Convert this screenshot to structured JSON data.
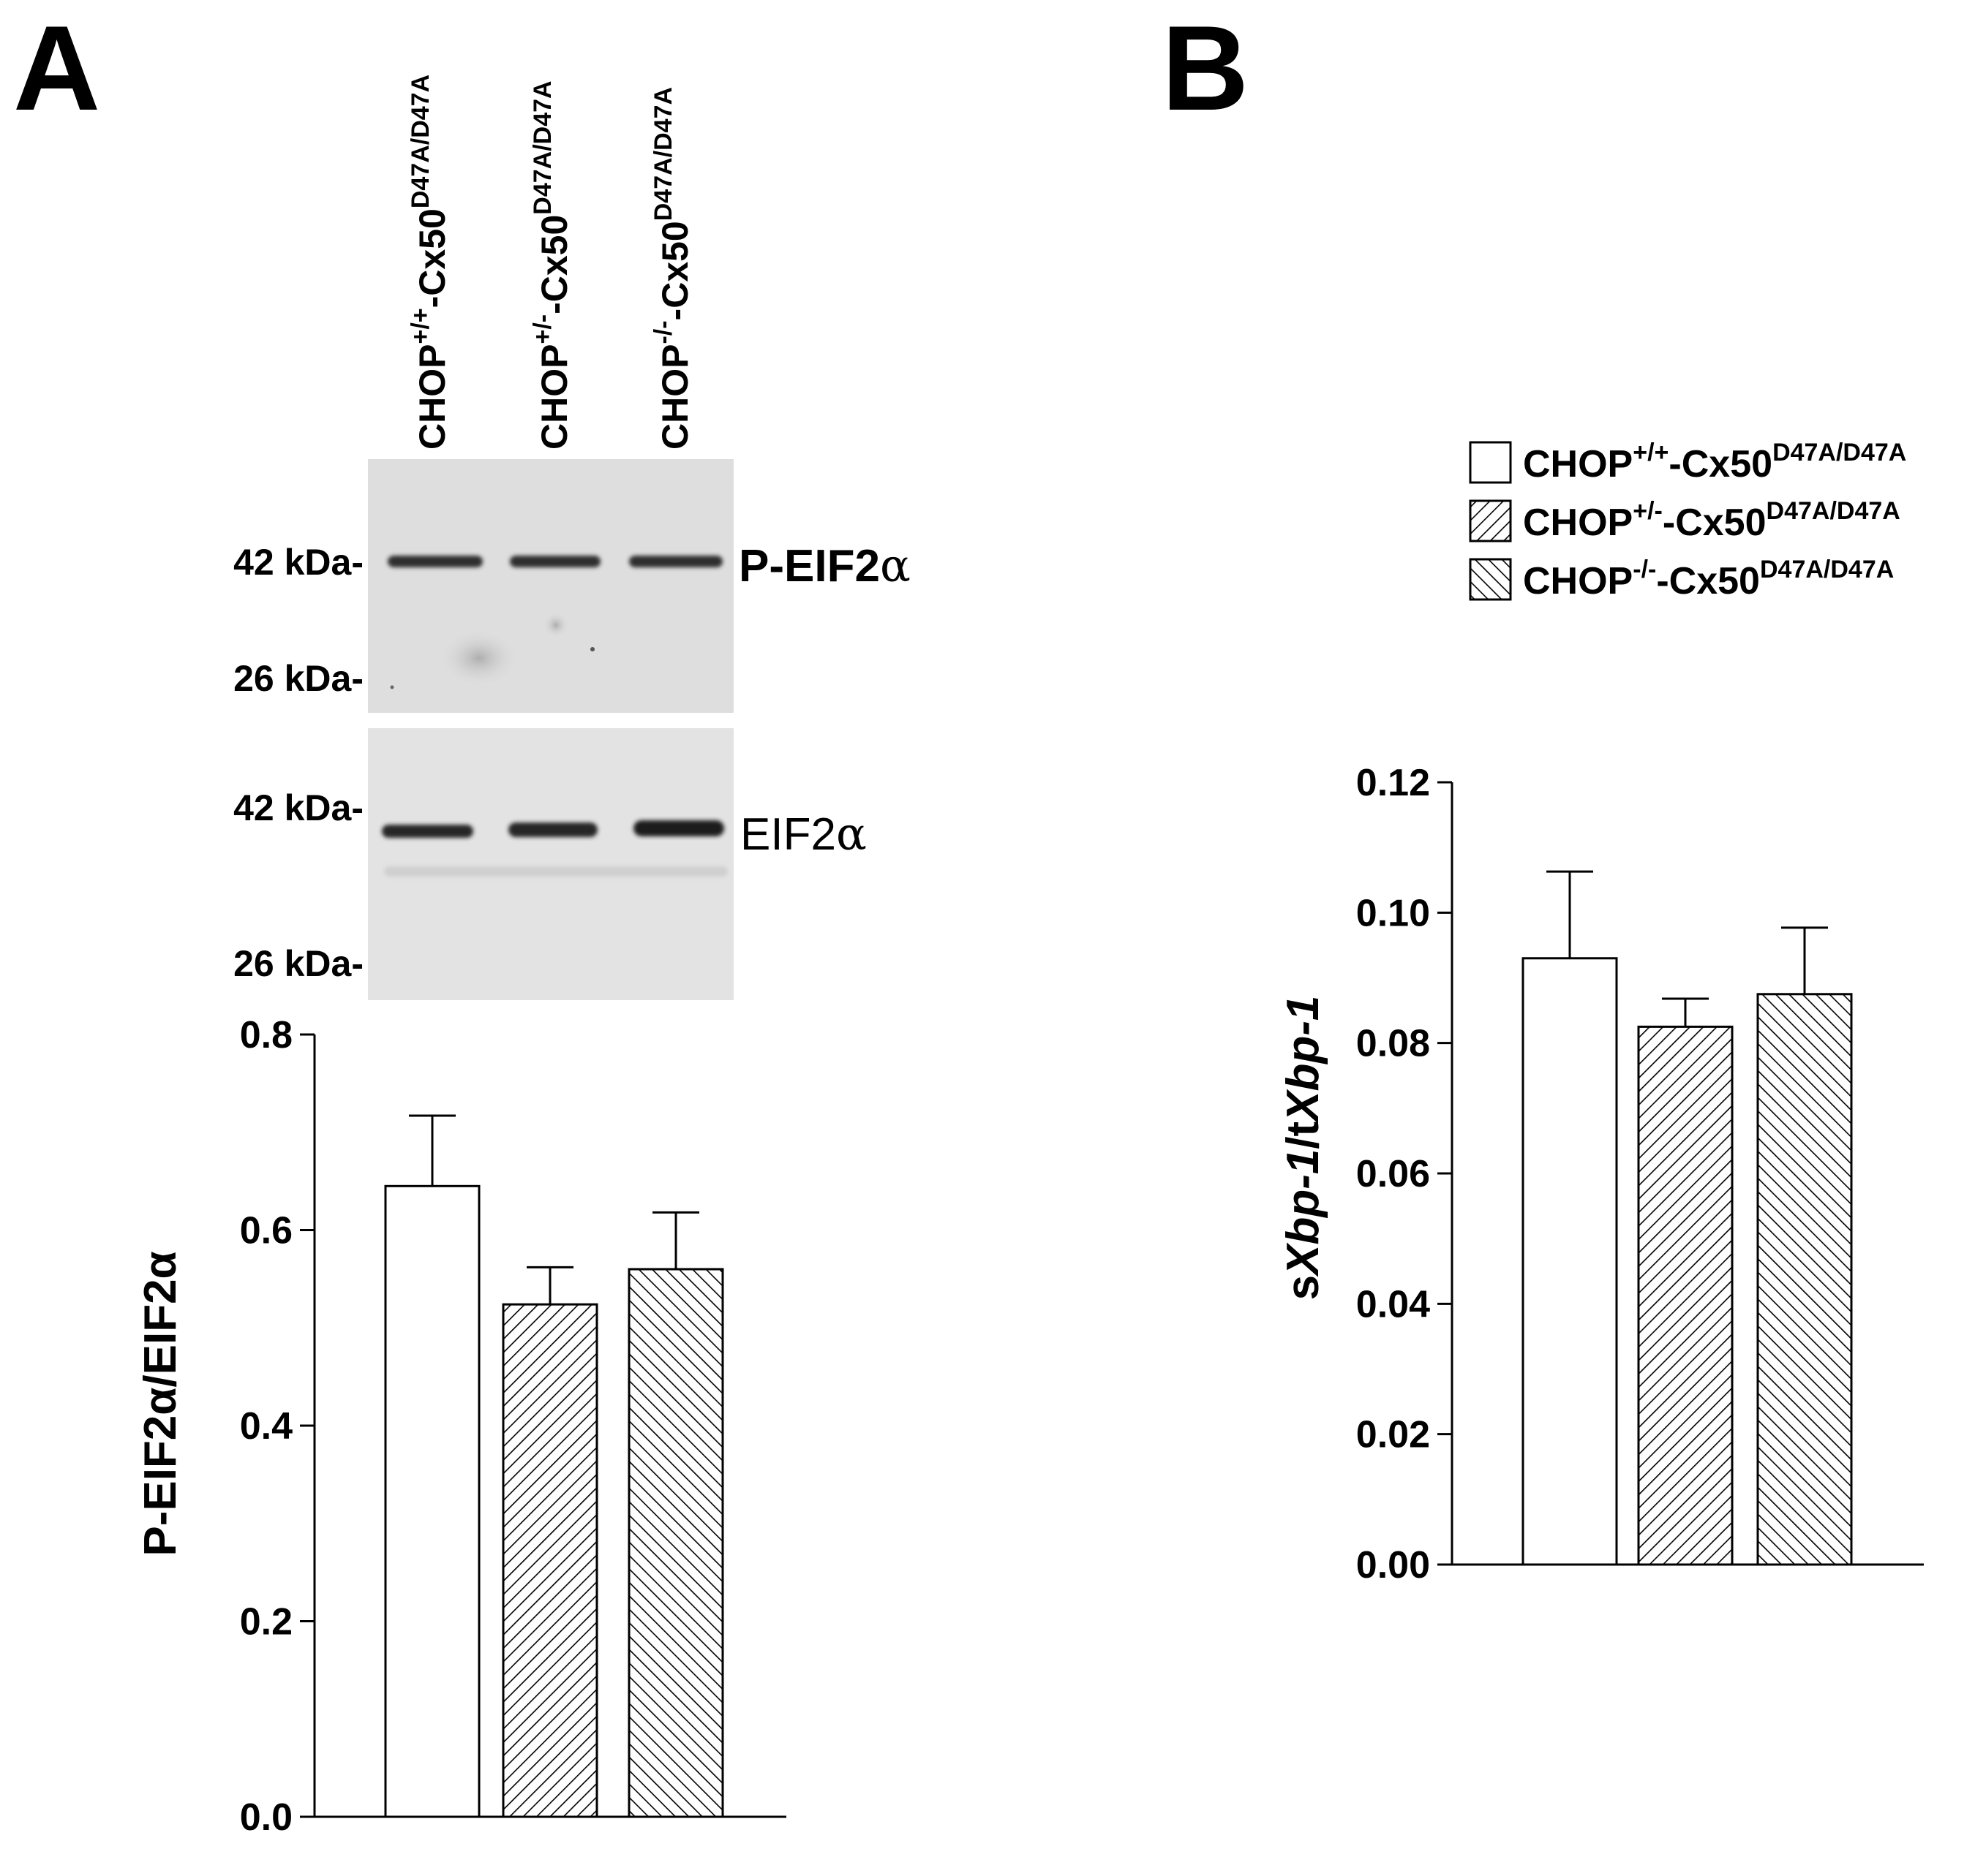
{
  "panels": {
    "a": {
      "letter": "A"
    },
    "b": {
      "letter": "B"
    }
  },
  "groups": [
    {
      "prefix": "CHOP",
      "genotype_sup": "+/+",
      "mid": "-Cx50",
      "allele_sup": "D47A/D47A",
      "fill": "open"
    },
    {
      "prefix": "CHOP",
      "genotype_sup": "+/-",
      "mid": "-Cx50",
      "allele_sup": "D47A/D47A",
      "fill": "hatch-forward"
    },
    {
      "prefix": "CHOP",
      "genotype_sup": "-/-",
      "mid": "-Cx50",
      "allele_sup": "D47A/D47A",
      "fill": "hatch-backward"
    }
  ],
  "blot": {
    "phospho": {
      "label_prefix": "P-EIF2",
      "label_greek": "α",
      "markers": [
        "42 kDa-",
        "26 kDa-"
      ]
    },
    "total": {
      "label_prefix": "EIF2",
      "label_greek": "α",
      "markers": [
        "42 kDa-",
        "26 kDa-"
      ]
    }
  },
  "colors": {
    "ink": "#000000",
    "bar_fill": "#ffffff",
    "blot_bg_phospho": "#dedede",
    "blot_bg_total": "#e3e3e3",
    "band": "#2e2e2e"
  },
  "chart_data": [
    {
      "panel": "A",
      "type": "bar",
      "categories": [
        "CHOP+/+-Cx50D47A/D47A",
        "CHOP+/--Cx50D47A/D47A",
        "CHOP-/--Cx50D47A/D47A"
      ],
      "values": [
        0.645,
        0.524,
        0.56
      ],
      "error": [
        0.072,
        0.038,
        0.058
      ],
      "ylabel": "P-EIF2α/EIF2α",
      "ylim": [
        0,
        0.8
      ],
      "ticks": [
        "0.0",
        "0.2",
        "0.4",
        "0.6",
        "0.8"
      ],
      "tick_values": [
        0,
        0.2,
        0.4,
        0.6,
        0.8
      ],
      "grid": false,
      "legend": false
    },
    {
      "panel": "B",
      "type": "bar",
      "categories": [
        "CHOP+/+-Cx50D47A/D47A",
        "CHOP+/--Cx50D47A/D47A",
        "CHOP-/--Cx50D47A/D47A"
      ],
      "values": [
        0.093,
        0.0825,
        0.0875
      ],
      "error": [
        0.0133,
        0.0043,
        0.0102
      ],
      "ylabel_parts": [
        {
          "text": "s",
          "italic": false
        },
        {
          "text": "Xbp-1",
          "italic": true
        },
        {
          "text": "/t",
          "italic": false
        },
        {
          "text": "Xbp-1",
          "italic": true
        }
      ],
      "ylim": [
        0,
        0.12
      ],
      "ticks": [
        "0.00",
        "0.02",
        "0.04",
        "0.06",
        "0.08",
        "0.10",
        "0.12"
      ],
      "tick_values": [
        0,
        0.02,
        0.04,
        0.06,
        0.08,
        0.1,
        0.12
      ],
      "grid": false,
      "legend": true,
      "legend_position": "top-right"
    }
  ]
}
